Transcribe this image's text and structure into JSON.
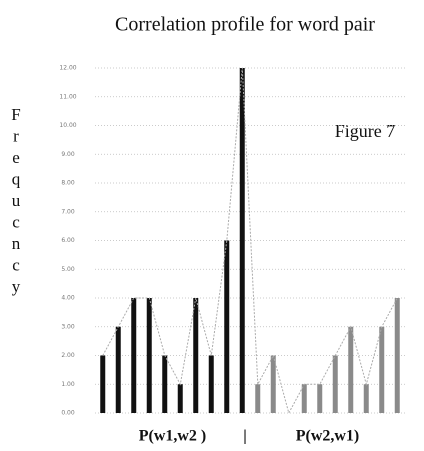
{
  "chart_data": {
    "type": "bar",
    "title": "Correlation profile for word pair",
    "annotation": "Figure 7",
    "y_label": "Frequcncy",
    "separator": "|",
    "groups": [
      {
        "label": "P(w1,w2 )",
        "color": "#111111",
        "values": [
          2,
          3,
          4,
          4,
          2,
          1,
          4,
          2,
          6,
          12
        ]
      },
      {
        "label": "P(w2,w1)",
        "color": "#8a8a8a",
        "values": [
          1,
          2,
          0,
          1,
          1,
          2,
          3,
          1,
          3,
          4
        ]
      }
    ],
    "line_color": "#aaaaaa",
    "ylim": [
      0,
      12
    ],
    "yticks": [
      {
        "value": 0,
        "label": "0.00"
      },
      {
        "value": 1,
        "label": "1.00"
      },
      {
        "value": 2,
        "label": "2.00"
      },
      {
        "value": 3,
        "label": "3.00"
      },
      {
        "value": 4,
        "label": "4.00"
      },
      {
        "value": 5,
        "label": "5.00"
      },
      {
        "value": 6,
        "label": "6.00"
      },
      {
        "value": 7,
        "label": "7.00"
      },
      {
        "value": 8,
        "label": "8.00"
      },
      {
        "value": 9,
        "label": "9.00"
      },
      {
        "value": 10,
        "label": "10.00"
      },
      {
        "value": 11,
        "label": "11.00"
      },
      {
        "value": 12,
        "label": "12.00"
      }
    ],
    "grid": true
  }
}
